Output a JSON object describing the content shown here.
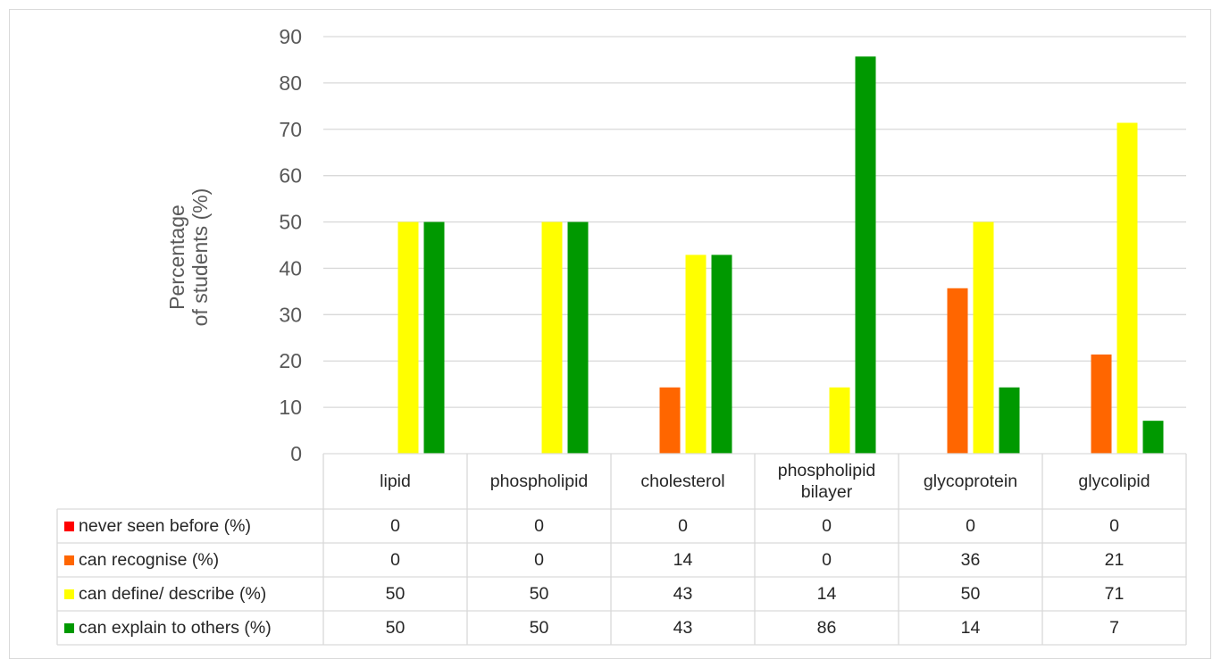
{
  "chart_data": {
    "type": "bar",
    "ylabel_lines": [
      "Percentage",
      "of students (%)"
    ],
    "ylim": [
      0,
      90
    ],
    "yticks": [
      "0",
      "10",
      "20",
      "30",
      "40",
      "50",
      "60",
      "70",
      "80",
      "90"
    ],
    "grid": true,
    "categories": [
      [
        "lipid"
      ],
      [
        "phospholipid"
      ],
      [
        "cholesterol"
      ],
      [
        "phospholipid",
        "bilayer"
      ],
      [
        "glycoprotein"
      ],
      [
        "glycolipid"
      ]
    ],
    "series": [
      {
        "name": "never seen before (%)",
        "color": "#ff0000",
        "values": [
          0,
          0,
          0,
          0,
          0,
          0
        ],
        "labels": [
          "0",
          "0",
          "0",
          "0",
          "0",
          "0"
        ]
      },
      {
        "name": "can recognise (%)",
        "color": "#ff6600",
        "values": [
          0,
          0,
          14.3,
          0,
          35.7,
          21.4
        ],
        "labels": [
          "0",
          "0",
          "14",
          "0",
          "36",
          "21"
        ]
      },
      {
        "name": "can define/ describe (%)",
        "color": "#ffff00",
        "values": [
          50,
          50,
          42.9,
          14.3,
          50,
          71.4
        ],
        "labels": [
          "50",
          "50",
          "43",
          "14",
          "50",
          "71"
        ]
      },
      {
        "name": "can explain to others (%)",
        "color": "#009900",
        "values": [
          50,
          50,
          42.9,
          85.7,
          14.3,
          7.1
        ],
        "labels": [
          "50",
          "50",
          "43",
          "86",
          "14",
          "7"
        ]
      }
    ],
    "legend": "data-table"
  }
}
